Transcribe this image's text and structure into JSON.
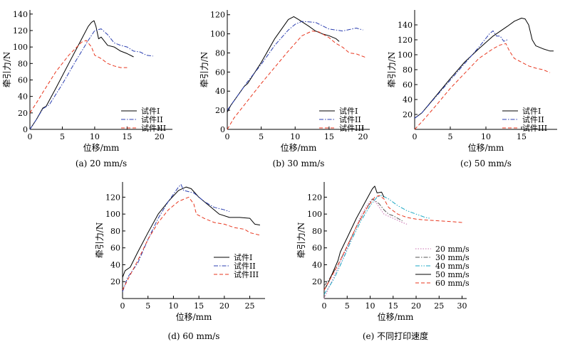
{
  "chart_data": [
    {
      "type": "line",
      "caption": "(a) 20 mm/s",
      "xlabel": "位移/mm",
      "ylabel": "牵引力/N",
      "xlim": [
        0,
        22
      ],
      "ylim": [
        0,
        145
      ],
      "xticks": [
        0,
        5,
        10,
        15,
        20
      ],
      "yticks": [
        0,
        20,
        40,
        60,
        80,
        100,
        120,
        140
      ],
      "legend": "center-right",
      "series": [
        {
          "name": "试件I",
          "color": "#000000",
          "dash": "solid",
          "x": [
            0,
            1,
            2,
            2.5,
            4,
            6,
            8,
            9,
            9.5,
            9.9,
            10.2,
            10.6,
            11,
            12,
            13,
            14,
            15,
            16
          ],
          "y": [
            0,
            12,
            26,
            28,
            50,
            80,
            110,
            125,
            130,
            132,
            125,
            110,
            112,
            102,
            100,
            95,
            92,
            88
          ]
        },
        {
          "name": "试件II",
          "color": "#2b3fb0",
          "dash": "dashdot",
          "x": [
            0,
            1,
            2,
            3,
            5,
            7,
            9,
            10,
            11,
            12,
            13,
            14,
            15,
            16,
            17,
            18,
            19
          ],
          "y": [
            0,
            12,
            25,
            30,
            55,
            82,
            108,
            120,
            122,
            115,
            105,
            102,
            100,
            95,
            94,
            90,
            89
          ]
        },
        {
          "name": "试件III",
          "color": "#e8361e",
          "dash": "dashed",
          "x": [
            0,
            1,
            2,
            4,
            6,
            8,
            8.7,
            9.5,
            10,
            11,
            12,
            13,
            14,
            15
          ],
          "y": [
            20,
            32,
            45,
            70,
            90,
            106,
            108,
            100,
            90,
            86,
            80,
            77,
            75,
            75
          ]
        }
      ]
    },
    {
      "type": "line",
      "caption": "(b) 30 mm/s",
      "xlabel": "位移/mm",
      "ylabel": "牵引力/N",
      "xlim": [
        0,
        21
      ],
      "ylim": [
        0,
        125
      ],
      "xticks": [
        0,
        5,
        10,
        15,
        20
      ],
      "yticks": [
        0,
        20,
        40,
        60,
        80,
        100,
        120
      ],
      "legend": "center-right",
      "series": [
        {
          "name": "试件I",
          "color": "#000000",
          "dash": "solid",
          "x": [
            0,
            0.5,
            1.5,
            2.5,
            3,
            5,
            7,
            9,
            9.8,
            10.5,
            12,
            13,
            14,
            15,
            16,
            16.5
          ],
          "y": [
            18,
            25,
            35,
            45,
            48,
            70,
            95,
            115,
            118,
            115,
            108,
            103,
            100,
            98,
            95,
            92
          ]
        },
        {
          "name": "试件II",
          "color": "#2b3fb0",
          "dash": "dashdot",
          "x": [
            0,
            1,
            3,
            5,
            7,
            9,
            10,
            11,
            13,
            15,
            17,
            19,
            20
          ],
          "y": [
            20,
            30,
            50,
            68,
            88,
            104,
            110,
            113,
            112,
            105,
            103,
            106,
            104
          ]
        },
        {
          "name": "试件III",
          "color": "#e8361e",
          "dash": "dashed",
          "x": [
            0,
            1,
            3,
            5,
            7,
            9,
            11,
            12.5,
            13.5,
            15,
            16,
            17,
            18,
            19,
            20.5
          ],
          "y": [
            0,
            12,
            30,
            48,
            65,
            82,
            98,
            103,
            102,
            96,
            90,
            86,
            80,
            79,
            75
          ]
        }
      ]
    },
    {
      "type": "line",
      "caption": "(c) 50 mm/s",
      "xlabel": "位移/mm",
      "ylabel": "牵引力/N",
      "xlim": [
        0,
        20
      ],
      "ylim": [
        0,
        160
      ],
      "xticks": [
        0,
        5,
        10,
        15
      ],
      "yticks": [
        20,
        40,
        60,
        80,
        100,
        120,
        140
      ],
      "legend": "center-right",
      "series": [
        {
          "name": "试件I",
          "color": "#000000",
          "dash": "solid",
          "x": [
            0,
            1,
            3,
            5,
            7,
            9,
            11,
            13,
            14,
            15,
            15.5,
            16,
            16.5,
            17,
            18,
            19,
            19.5
          ],
          "y": [
            15,
            22,
            45,
            68,
            90,
            108,
            125,
            138,
            145,
            149,
            148,
            140,
            120,
            112,
            108,
            105,
            105
          ]
        },
        {
          "name": "试件II",
          "color": "#2b3fb0",
          "dash": "dashdot",
          "x": [
            0,
            1,
            3,
            5,
            7,
            9,
            10.5,
            11,
            11.5,
            12,
            12.5,
            13
          ],
          "y": [
            15,
            22,
            44,
            66,
            88,
            110,
            128,
            132,
            125,
            125,
            118,
            120
          ]
        },
        {
          "name": "试件III",
          "color": "#e8361e",
          "dash": "dashed",
          "x": [
            0,
            1,
            3,
            5,
            7,
            9,
            11,
            12,
            12.8,
            13.3,
            14,
            15,
            16,
            17,
            18,
            19
          ],
          "y": [
            0,
            10,
            32,
            55,
            75,
            95,
            108,
            113,
            115,
            105,
            95,
            90,
            85,
            82,
            80,
            76
          ]
        }
      ]
    },
    {
      "type": "line",
      "caption": "(d) 60 mm/s",
      "xlabel": "位移/mm",
      "ylabel": "牵引力/N",
      "xlim": [
        0,
        28
      ],
      "ylim": [
        0,
        138
      ],
      "xticks": [
        0,
        5,
        10,
        15,
        20,
        25
      ],
      "yticks": [
        20,
        40,
        60,
        80,
        100,
        120
      ],
      "legend": "center-right",
      "series": [
        {
          "name": "试件I",
          "color": "#000000",
          "dash": "solid",
          "x": [
            0,
            0.5,
            1.5,
            3,
            5,
            7,
            9,
            11,
            12.5,
            13.5,
            15,
            17,
            19,
            21,
            23,
            25,
            26,
            27
          ],
          "y": [
            25,
            33,
            37,
            55,
            78,
            100,
            115,
            128,
            132,
            130,
            120,
            110,
            100,
            96,
            96,
            95,
            88,
            87
          ]
        },
        {
          "name": "试件II",
          "color": "#2b3fb0",
          "dash": "dashdot",
          "x": [
            0,
            1,
            3,
            5,
            7,
            9,
            11,
            11.5,
            12,
            14,
            16,
            18,
            20,
            21
          ],
          "y": [
            8,
            25,
            42,
            70,
            95,
            115,
            132,
            135,
            128,
            125,
            115,
            108,
            105,
            103
          ]
        },
        {
          "name": "试件III",
          "color": "#e8361e",
          "dash": "dashed",
          "x": [
            0,
            1,
            3,
            5,
            7,
            9,
            11,
            13,
            14,
            14.5,
            16,
            18,
            20,
            22,
            24,
            25,
            27
          ],
          "y": [
            10,
            22,
            45,
            70,
            90,
            105,
            115,
            120,
            112,
            100,
            95,
            90,
            88,
            84,
            82,
            78,
            75
          ]
        }
      ]
    },
    {
      "type": "line",
      "caption": "(e) 不同打印速度",
      "xlabel": "位移/mm",
      "ylabel": "牵引力/N",
      "xlim": [
        0,
        31
      ],
      "ylim": [
        0,
        138
      ],
      "xticks": [
        0,
        5,
        10,
        15,
        20,
        25,
        30
      ],
      "yticks": [
        20,
        40,
        60,
        80,
        100,
        120
      ],
      "legend": "lower-right",
      "series": [
        {
          "name": "20 mm/s",
          "color": "#c96fb0",
          "dash": "dotted",
          "x": [
            0,
            2,
            4,
            6,
            8,
            9.5,
            10.5,
            11.5,
            13,
            15,
            17,
            18
          ],
          "y": [
            0,
            25,
            48,
            72,
            98,
            112,
            118,
            112,
            100,
            95,
            90,
            88
          ]
        },
        {
          "name": "30 mm/s",
          "color": "#555555",
          "dash": "dashdot",
          "x": [
            0,
            1,
            3,
            5,
            7,
            9,
            10.5,
            12,
            13,
            14,
            15,
            16,
            17
          ],
          "y": [
            15,
            22,
            40,
            62,
            85,
            105,
            118,
            112,
            105,
            100,
            98,
            95,
            92
          ]
        },
        {
          "name": "40 mm/s",
          "color": "#18a7c4",
          "dash": "dashdotdot",
          "x": [
            0,
            2,
            4,
            6,
            8,
            10,
            11.5,
            12.5,
            14,
            16,
            18,
            20,
            22,
            23
          ],
          "y": [
            5,
            22,
            45,
            70,
            92,
            110,
            120,
            122,
            118,
            110,
            104,
            100,
            96,
            95
          ]
        },
        {
          "name": "50 mm/s",
          "color": "#000000",
          "dash": "solid",
          "x": [
            0,
            1,
            3,
            3.5,
            5,
            7,
            9,
            10.5,
            11,
            11.5,
            12.5,
            13
          ],
          "y": [
            10,
            20,
            45,
            55,
            72,
            95,
            115,
            130,
            133,
            125,
            126,
            120
          ]
        },
        {
          "name": "60 mm/s",
          "color": "#e8361e",
          "dash": "dashed",
          "x": [
            0,
            1,
            3,
            5,
            7,
            9,
            11,
            12,
            13,
            14,
            16,
            18,
            20,
            22,
            25,
            28,
            30
          ],
          "y": [
            10,
            20,
            40,
            62,
            85,
            105,
            120,
            122,
            118,
            108,
            100,
            96,
            94,
            93,
            92,
            91,
            90
          ]
        }
      ]
    }
  ]
}
